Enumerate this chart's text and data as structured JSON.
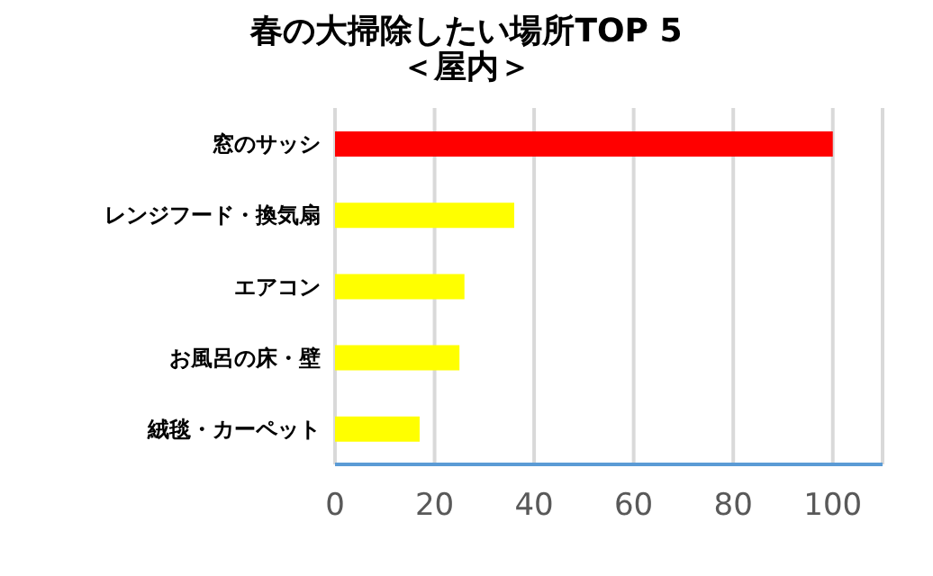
{
  "chart_data": {
    "type": "bar",
    "orientation": "horizontal",
    "title": "春の大掃除したい場所TOP 5",
    "subtitle": "＜屋内＞",
    "categories": [
      "窓のサッシ",
      "レンジフード・換気扇",
      "エアコン",
      "お風呂の床・壁",
      "絨毯・カーペット"
    ],
    "values": [
      100,
      36,
      26,
      25,
      17
    ],
    "colors": [
      "#ff0000",
      "#ffff00",
      "#ffff00",
      "#ffff00",
      "#ffff00"
    ],
    "xlim": [
      0,
      110
    ],
    "xticks": [
      0,
      20,
      40,
      60,
      80,
      100
    ],
    "grid": "x",
    "legend": false
  }
}
